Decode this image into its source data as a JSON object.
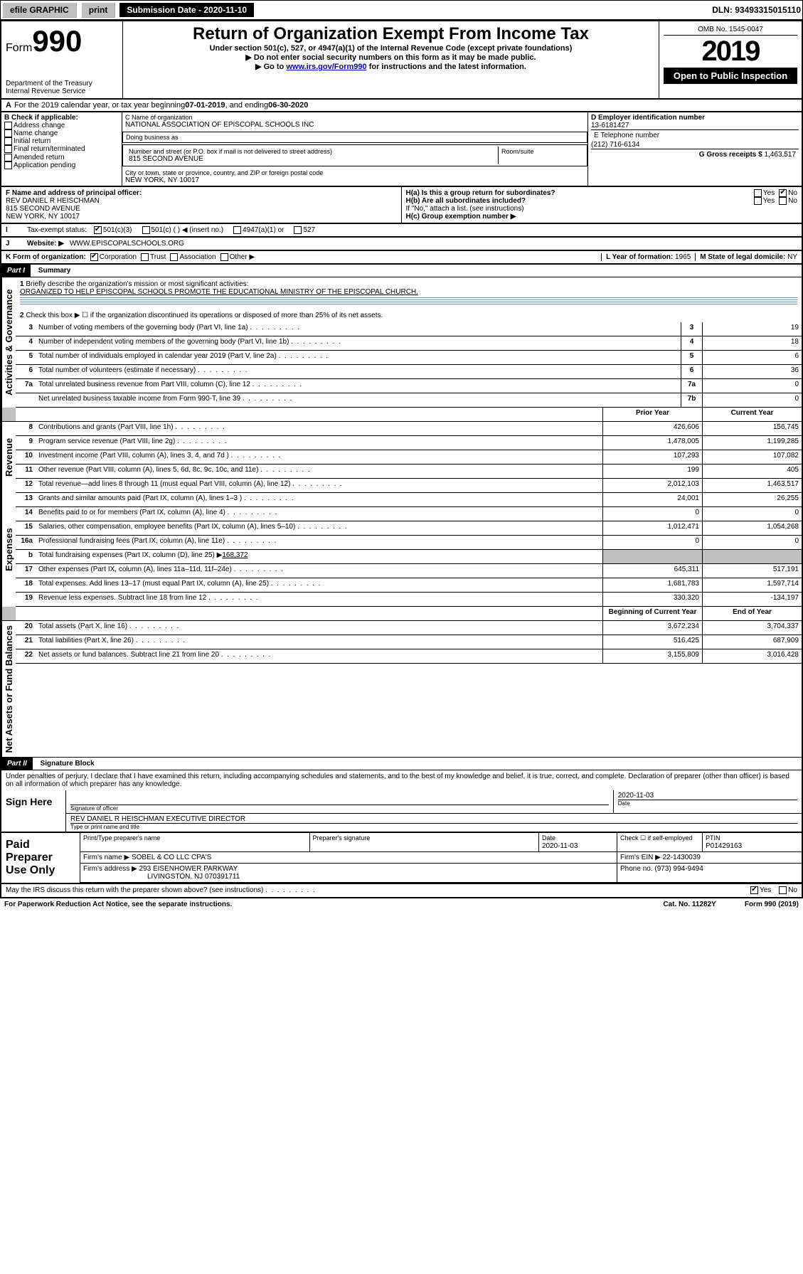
{
  "topbar": {
    "efile": "efile GRAPHIC",
    "print": "print",
    "submission_label": "Submission Date - 2020-11-10",
    "dln": "DLN: 93493315015110"
  },
  "header": {
    "form_label": "Form",
    "form_number": "990",
    "dept": "Department of the Treasury\nInternal Revenue Service",
    "title": "Return of Organization Exempt From Income Tax",
    "subtitle": "Under section 501(c), 527, or 4947(a)(1) of the Internal Revenue Code (except private foundations)",
    "note1": "Do not enter social security numbers on this form as it may be made public.",
    "note2_pre": "Go to ",
    "note2_link": "www.irs.gov/Form990",
    "note2_post": " for instructions and the latest information.",
    "omb": "OMB No. 1545-0047",
    "year": "2019",
    "open": "Open to Public Inspection"
  },
  "periodA": {
    "text_pre": "For the 2019 calendar year, or tax year beginning ",
    "begin": "07-01-2019",
    "mid": " , and ending ",
    "end": "06-30-2020"
  },
  "boxB": {
    "label": "B Check if applicable:",
    "items": [
      "Address change",
      "Name change",
      "Initial return",
      "Final return/terminated",
      "Amended return",
      "Application pending"
    ]
  },
  "boxC": {
    "name_label": "C Name of organization",
    "name": "NATIONAL ASSOCIATION OF EPISCOPAL SCHOOLS INC",
    "dba_label": "Doing business as",
    "dba": "",
    "street_label": "Number and street (or P.O. box if mail is not delivered to street address)",
    "room_label": "Room/suite",
    "street": "815 SECOND AVENUE",
    "city_label": "City or town, state or province, country, and ZIP or foreign postal code",
    "city": "NEW YORK, NY  10017"
  },
  "boxD": {
    "label": "D Employer identification number",
    "value": "13-6181427"
  },
  "boxE": {
    "label": "E Telephone number",
    "value": "(212) 716-6134"
  },
  "boxG": {
    "label": "G Gross receipts $",
    "value": "1,463,517"
  },
  "boxF": {
    "label": "F  Name and address of principal officer:",
    "name": "REV DANIEL R HEISCHMAN",
    "addr1": "815 SECOND AVENUE",
    "addr2": "NEW YORK, NY  10017"
  },
  "boxH": {
    "a": "H(a)  Is this a group return for subordinates?",
    "b": "H(b)  Are all subordinates included?",
    "b_note": "If \"No,\" attach a list. (see instructions)",
    "c": "H(c)  Group exemption number ▶",
    "yes": "Yes",
    "no": "No"
  },
  "boxI": {
    "label": "Tax-exempt status:",
    "c3": "501(c)(3)",
    "c": "501(c) (  ) ◀ (insert no.)",
    "a1": "4947(a)(1) or",
    "s527": "527"
  },
  "boxJ": {
    "label": "Website: ▶",
    "value": "WWW.EPISCOPALSCHOOLS.ORG"
  },
  "boxK": {
    "label": "K Form of organization:",
    "corp": "Corporation",
    "trust": "Trust",
    "assoc": "Association",
    "other": "Other ▶"
  },
  "boxL": {
    "label": "L Year of formation:",
    "value": "1965"
  },
  "boxM": {
    "label": "M State of legal domicile:",
    "value": "NY"
  },
  "part1": {
    "hdr": "Part I",
    "title": "Summary"
  },
  "governance": {
    "tab": "Activities & Governance",
    "l1_label": "Briefly describe the organization's mission or most significant activities:",
    "l1_text": "ORGANIZED TO HELP EPISCOPAL SCHOOLS PROMOTE THE EDUCATIONAL MINISTRY OF THE EPISCOPAL CHURCH.",
    "l2": "Check this box ▶ ☐ if the organization discontinued its operations or disposed of more than 25% of its net assets.",
    "rows": [
      {
        "n": "3",
        "d": "Number of voting members of the governing body (Part VI, line 1a)",
        "b": "3",
        "v": "19"
      },
      {
        "n": "4",
        "d": "Number of independent voting members of the governing body (Part VI, line 1b)",
        "b": "4",
        "v": "18"
      },
      {
        "n": "5",
        "d": "Total number of individuals employed in calendar year 2019 (Part V, line 2a)",
        "b": "5",
        "v": "6"
      },
      {
        "n": "6",
        "d": "Total number of volunteers (estimate if necessary)",
        "b": "6",
        "v": "36"
      },
      {
        "n": "7a",
        "d": "Total unrelated business revenue from Part VIII, column (C), line 12",
        "b": "7a",
        "v": "0"
      },
      {
        "n": "",
        "d": "Net unrelated business taxable income from Form 990-T, line 39",
        "b": "7b",
        "v": "0"
      }
    ]
  },
  "twocol_hdr": {
    "prior": "Prior Year",
    "current": "Current Year",
    "boy": "Beginning of Current Year",
    "eoy": "End of Year"
  },
  "revenue": {
    "tab": "Revenue",
    "rows": [
      {
        "n": "8",
        "d": "Contributions and grants (Part VIII, line 1h)",
        "p": "426,606",
        "c": "156,745"
      },
      {
        "n": "9",
        "d": "Program service revenue (Part VIII, line 2g)",
        "p": "1,478,005",
        "c": "1,199,285"
      },
      {
        "n": "10",
        "d": "Investment income (Part VIII, column (A), lines 3, 4, and 7d )",
        "p": "107,293",
        "c": "107,082"
      },
      {
        "n": "11",
        "d": "Other revenue (Part VIII, column (A), lines 5, 6d, 8c, 9c, 10c, and 11e)",
        "p": "199",
        "c": "405"
      },
      {
        "n": "12",
        "d": "Total revenue—add lines 8 through 11 (must equal Part VIII, column (A), line 12)",
        "p": "2,012,103",
        "c": "1,463,517"
      }
    ]
  },
  "expenses": {
    "tab": "Expenses",
    "rows": [
      {
        "n": "13",
        "d": "Grants and similar amounts paid (Part IX, column (A), lines 1–3 )",
        "p": "24,001",
        "c": "26,255"
      },
      {
        "n": "14",
        "d": "Benefits paid to or for members (Part IX, column (A), line 4)",
        "p": "0",
        "c": "0"
      },
      {
        "n": "15",
        "d": "Salaries, other compensation, employee benefits (Part IX, column (A), lines 5–10)",
        "p": "1,012,471",
        "c": "1,054,268"
      },
      {
        "n": "16a",
        "d": "Professional fundraising fees (Part IX, column (A), line 11e)",
        "p": "0",
        "c": "0"
      }
    ],
    "l16b_pre": "Total fundraising expenses (Part IX, column (D), line 25) ▶",
    "l16b_val": "168,372",
    "rows2": [
      {
        "n": "17",
        "d": "Other expenses (Part IX, column (A), lines 11a–11d, 11f–24e)",
        "p": "645,311",
        "c": "517,191"
      },
      {
        "n": "18",
        "d": "Total expenses. Add lines 13–17 (must equal Part IX, column (A), line 25)",
        "p": "1,681,783",
        "c": "1,597,714"
      },
      {
        "n": "19",
        "d": "Revenue less expenses. Subtract line 18 from line 12",
        "p": "330,320",
        "c": "-134,197"
      }
    ]
  },
  "netassets": {
    "tab": "Net Assets or Fund Balances",
    "rows": [
      {
        "n": "20",
        "d": "Total assets (Part X, line 16)",
        "p": "3,672,234",
        "c": "3,704,337"
      },
      {
        "n": "21",
        "d": "Total liabilities (Part X, line 26)",
        "p": "516,425",
        "c": "687,909"
      },
      {
        "n": "22",
        "d": "Net assets or fund balances. Subtract line 21 from line 20",
        "p": "3,155,809",
        "c": "3,016,428"
      }
    ]
  },
  "part2": {
    "hdr": "Part II",
    "title": "Signature Block"
  },
  "perjury": "Under penalties of perjury, I declare that I have examined this return, including accompanying schedules and statements, and to the best of my knowledge and belief, it is true, correct, and complete. Declaration of preparer (other than officer) is based on all information of which preparer has any knowledge.",
  "sign": {
    "label": "Sign Here",
    "sig_label": "Signature of officer",
    "date_label": "Date",
    "date": "2020-11-03",
    "name": "REV DANIEL R HEISCHMAN  EXECUTIVE DIRECTOR",
    "name_label": "Type or print name and title"
  },
  "paid": {
    "label": "Paid Preparer Use Only",
    "h1": "Print/Type preparer's name",
    "h2": "Preparer's signature",
    "h3": "Date",
    "h3v": "2020-11-03",
    "h4": "Check ☐ if self-employed",
    "h5": "PTIN",
    "h5v": "P01429163",
    "firm_name_label": "Firm's name      ▶",
    "firm_name": "SOBEL & CO LLC CPA'S",
    "firm_ein_label": "Firm's EIN ▶",
    "firm_ein": "22-1430039",
    "firm_addr_label": "Firm's address ▶",
    "firm_addr": "293 EISENHOWER PARKWAY",
    "firm_addr2": "LIVINGSTON, NJ  070391711",
    "phone_label": "Phone no.",
    "phone": "(973) 994-9494"
  },
  "discuss": {
    "q": "May the IRS discuss this return with the preparer shown above? (see instructions)",
    "yes": "Yes",
    "no": "No"
  },
  "footer": {
    "pra": "For Paperwork Reduction Act Notice, see the separate instructions.",
    "cat": "Cat. No. 11282Y",
    "form": "Form 990 (2019)"
  }
}
